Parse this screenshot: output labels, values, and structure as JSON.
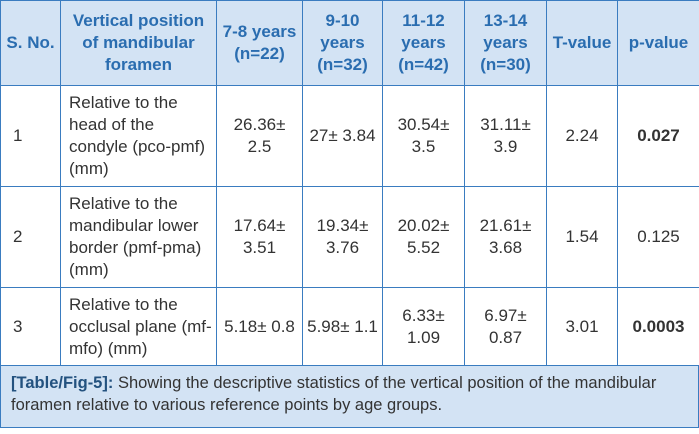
{
  "table": {
    "header": [
      "S. No.",
      "Vertical position of mandibular foramen",
      "7-8 years (n=22)",
      "9-10 years (n=32)",
      "11-12 years (n=42)",
      "13-14 years (n=30)",
      "T-value",
      "p-value"
    ],
    "rows": [
      {
        "cells": [
          "1",
          "Relative to the head of the condyle (pco-pmf) (mm)",
          "26.36± 2.5",
          "27± 3.84",
          "30.54± 3.5",
          "31.11± 3.9",
          "2.24",
          "0.027"
        ],
        "p_value_bold": true
      },
      {
        "cells": [
          "2",
          "Relative to the mandibular lower border (pmf-pma) (mm)",
          "17.64± 3.51",
          "19.34± 3.76",
          "20.02± 5.52",
          "21.61± 3.68",
          "1.54",
          "0.125"
        ],
        "p_value_bold": false
      },
      {
        "cells": [
          "3",
          "Relative to the occlusal plane (mf-mfo) (mm)",
          "5.18± 0.8",
          "5.98± 1.1",
          "6.33± 1.09",
          "6.97± 0.87",
          "3.01",
          "0.0003"
        ],
        "p_value_bold": true
      }
    ]
  },
  "caption": {
    "label": "[Table/Fig-5]:",
    "text": "Showing the descriptive statistics of the vertical position of the mandibular foramen relative to various reference points by age groups."
  }
}
